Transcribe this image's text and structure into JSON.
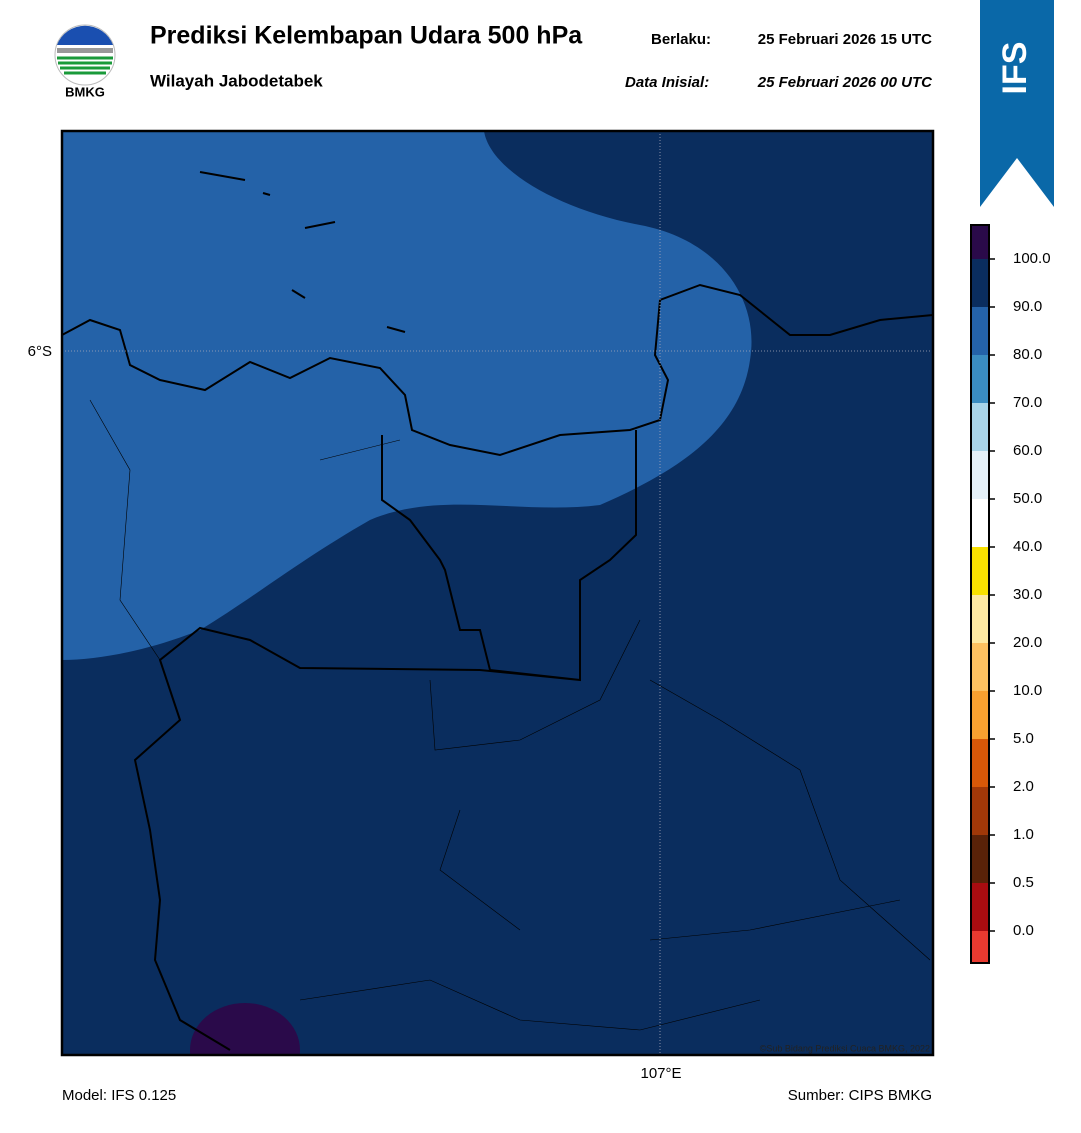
{
  "header": {
    "title": "Prediksi Kelembapan Udara 500 hPa",
    "subtitle": "Wilayah Jabodetabek",
    "valid_label": "Berlaku:",
    "valid_time": "25 Februari 2026 15 UTC",
    "init_label": "Data Inisial:",
    "init_time": "25 Februari 2026 00 UTC",
    "logo_text": "BMKG",
    "badge": "IFS"
  },
  "map": {
    "lat_label": "6°S",
    "lon_label": "107°E",
    "credit": "©Sub Bidang Prediksi Cuaca BMKG, 2022"
  },
  "colorbar": {
    "ticks": [
      {
        "value": 0,
        "label": "0.0"
      },
      {
        "value": 0.5,
        "label": "0.5"
      },
      {
        "value": 1,
        "label": "1.0"
      },
      {
        "value": 2,
        "label": "2.0"
      },
      {
        "value": 5,
        "label": "5.0"
      },
      {
        "value": 10,
        "label": "10.0"
      },
      {
        "value": 20,
        "label": "20.0"
      },
      {
        "value": 30,
        "label": "30.0"
      },
      {
        "value": 40,
        "label": "40.0"
      },
      {
        "value": 50,
        "label": "50.0"
      },
      {
        "value": 60,
        "label": "60.0"
      },
      {
        "value": 70,
        "label": "70.0"
      },
      {
        "value": 80,
        "label": "80.0"
      },
      {
        "value": 90,
        "label": "90.0"
      },
      {
        "value": 100,
        "label": "100.0"
      }
    ],
    "colors": [
      "#e83a30",
      "#a80c10",
      "#5a2208",
      "#a03808",
      "#d85808",
      "#f8a030",
      "#fcc060",
      "#fde8a0",
      "#f8e000",
      "#ffffff",
      "#e4f0f8",
      "#a8d4e8",
      "#3a8cc0",
      "#2462a8",
      "#0a2d5e",
      "#2a0a4a"
    ]
  },
  "footer": {
    "model": "Model: IFS 0.125",
    "source": "Sumber: CIPS BMKG"
  }
}
